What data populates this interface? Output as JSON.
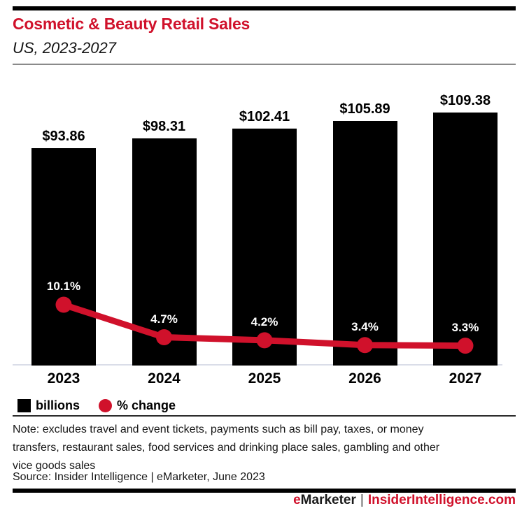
{
  "header": {
    "title": "Cosmetic & Beauty Retail Sales",
    "subtitle": "US, 2023-2027"
  },
  "chart_data": {
    "type": "bar",
    "subtype": "bar + line combo",
    "title": "Cosmetic & Beauty Retail Sales",
    "subtitle": "US, 2023-2027",
    "categories": [
      "2023",
      "2024",
      "2025",
      "2026",
      "2027"
    ],
    "series": [
      {
        "name": "billions",
        "type": "bar",
        "color": "#000000",
        "values": [
          93.86,
          98.31,
          102.41,
          105.89,
          109.38
        ],
        "labels": [
          "$93.86",
          "$98.31",
          "$102.41",
          "$105.89",
          "$109.38"
        ]
      },
      {
        "name": "% change",
        "type": "line",
        "color": "#d0112b",
        "values": [
          10.1,
          4.7,
          4.2,
          3.4,
          3.3
        ],
        "labels": [
          "10.1%",
          "4.7%",
          "4.2%",
          "3.4%",
          "3.3%"
        ]
      }
    ],
    "layout": {
      "bars_start_at_zero": true,
      "gridlines": false,
      "data_labels": "above bars and above line points",
      "legend_position": "bottom-left"
    }
  },
  "legend": {
    "items": [
      {
        "label": "billions",
        "swatch": "square",
        "color": "#000000"
      },
      {
        "label": "% change",
        "swatch": "circle",
        "color": "#d0112b"
      }
    ]
  },
  "note": "Note: excludes travel and event tickets, payments such as bill pay, taxes, or money transfers, restaurant sales, food services and drinking place sales, gambling and other vice goods sales",
  "source": "Source: Insider Intelligence | eMarketer, June 2023",
  "footer": {
    "brand_red_letter": "e",
    "brand_black": "Marketer",
    "divider": "|",
    "site": "InsiderIntelligence.com"
  },
  "colors": {
    "accent_red": "#d0112b",
    "bar_black": "#000000",
    "baseline_gray": "#dadde8"
  }
}
